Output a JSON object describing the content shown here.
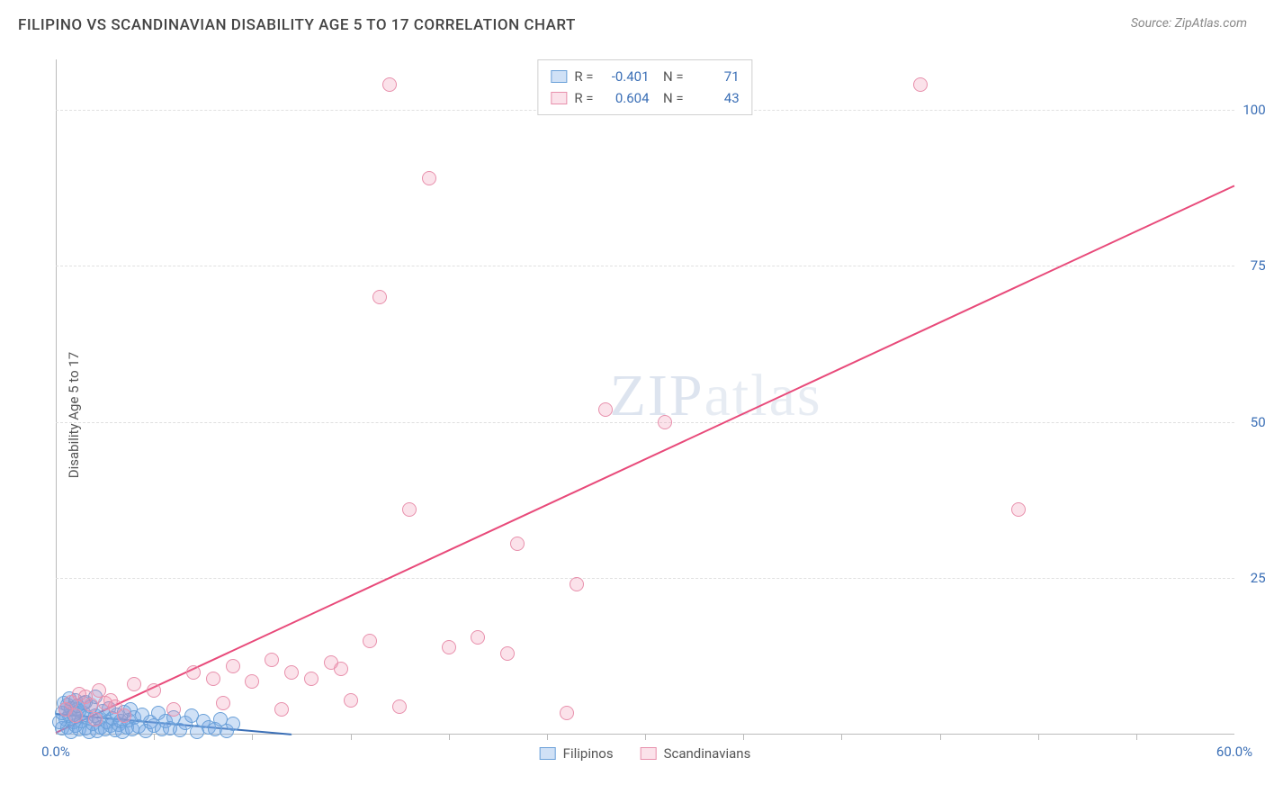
{
  "header": {
    "title": "FILIPINO VS SCANDINAVIAN DISABILITY AGE 5 TO 17 CORRELATION CHART",
    "source_prefix": "Source: ",
    "source_name": "ZipAtlas.com"
  },
  "watermark": {
    "part1": "ZIP",
    "part2": "atlas"
  },
  "chart": {
    "type": "scatter",
    "ylabel": "Disability Age 5 to 17",
    "xlim": [
      0,
      60
    ],
    "ylim": [
      0,
      108
    ],
    "xtick_major": [
      0,
      60
    ],
    "xtick_minor": [
      5,
      10,
      15,
      20,
      25,
      30,
      35,
      40,
      45,
      50,
      55
    ],
    "xtick_labels": {
      "0": "0.0%",
      "60": "60.0%"
    },
    "ytick_values": [
      25,
      50,
      75,
      100
    ],
    "ytick_labels": {
      "25": "25.0%",
      "50": "50.0%",
      "75": "75.0%",
      "100": "100.0%"
    },
    "grid_color": "#e0e0e0",
    "axis_color": "#bbbbbb",
    "background_color": "#ffffff",
    "tick_label_color": "#3b6fb6",
    "tick_label_fontsize": 15,
    "marker_radius": 8,
    "series": [
      {
        "name": "Filipinos",
        "fill_color": "rgba(120,170,230,0.35)",
        "stroke_color": "#6aa0d8",
        "trend": {
          "x1": 0,
          "y1": 3.5,
          "x2": 12,
          "y2": 0.2,
          "color": "#3b6fb6",
          "width": 2,
          "dash": false,
          "extend_dash_to_x": 12,
          "extend_dash_color": "#9ab8d6"
        },
        "R": "-0.401",
        "N": "71",
        "points": [
          [
            0.3,
            1.0
          ],
          [
            0.5,
            2.5
          ],
          [
            0.6,
            1.2
          ],
          [
            0.7,
            3.0
          ],
          [
            0.8,
            0.5
          ],
          [
            0.9,
            2.0
          ],
          [
            1.0,
            1.5
          ],
          [
            1.1,
            4.0
          ],
          [
            1.2,
            0.8
          ],
          [
            1.3,
            2.2
          ],
          [
            1.4,
            3.5
          ],
          [
            1.5,
            1.0
          ],
          [
            1.6,
            2.8
          ],
          [
            1.7,
            0.4
          ],
          [
            1.8,
            4.5
          ],
          [
            1.9,
            1.8
          ],
          [
            2.0,
            3.0
          ],
          [
            2.1,
            0.6
          ],
          [
            2.2,
            2.4
          ],
          [
            2.3,
            1.2
          ],
          [
            2.4,
            3.8
          ],
          [
            2.5,
            0.9
          ],
          [
            2.6,
            2.0
          ],
          [
            2.7,
            4.2
          ],
          [
            2.8,
            1.4
          ],
          [
            2.9,
            2.6
          ],
          [
            3.0,
            0.7
          ],
          [
            3.1,
            3.2
          ],
          [
            3.2,
            1.6
          ],
          [
            3.3,
            2.1
          ],
          [
            3.4,
            0.5
          ],
          [
            3.5,
            3.6
          ],
          [
            3.6,
            1.1
          ],
          [
            3.7,
            2.3
          ],
          [
            3.8,
            4.0
          ],
          [
            3.9,
            0.8
          ],
          [
            4.0,
            2.7
          ],
          [
            4.2,
            1.3
          ],
          [
            4.4,
            3.1
          ],
          [
            4.6,
            0.6
          ],
          [
            4.8,
            2.0
          ],
          [
            5.0,
            1.5
          ],
          [
            5.2,
            3.4
          ],
          [
            5.4,
            0.9
          ],
          [
            5.6,
            2.2
          ],
          [
            5.8,
            1.0
          ],
          [
            6.0,
            2.8
          ],
          [
            6.3,
            0.7
          ],
          [
            6.6,
            1.9
          ],
          [
            6.9,
            3.0
          ],
          [
            7.2,
            0.5
          ],
          [
            7.5,
            2.1
          ],
          [
            7.8,
            1.2
          ],
          [
            8.1,
            0.8
          ],
          [
            8.4,
            2.5
          ],
          [
            8.7,
            0.6
          ],
          [
            9.0,
            1.7
          ],
          [
            0.4,
            5.0
          ],
          [
            0.6,
            4.8
          ],
          [
            1.0,
            5.5
          ],
          [
            1.5,
            5.2
          ],
          [
            2.0,
            6.0
          ],
          [
            0.8,
            4.2
          ],
          [
            1.2,
            3.8
          ],
          [
            0.2,
            2.0
          ],
          [
            0.3,
            3.5
          ],
          [
            0.5,
            4.0
          ],
          [
            0.7,
            5.8
          ],
          [
            0.9,
            3.2
          ],
          [
            1.1,
            4.6
          ],
          [
            1.4,
            5.0
          ]
        ]
      },
      {
        "name": "Scandinavians",
        "fill_color": "rgba(240,140,170,0.25)",
        "stroke_color": "#e890ac",
        "trend": {
          "x1": 0,
          "y1": 0.5,
          "x2": 60,
          "y2": 88,
          "color": "#e84a7a",
          "width": 2,
          "dash": false
        },
        "R": "0.604",
        "N": "43",
        "points": [
          [
            0.5,
            4.0
          ],
          [
            1.0,
            3.0
          ],
          [
            1.5,
            6.0
          ],
          [
            2.0,
            2.5
          ],
          [
            2.5,
            5.0
          ],
          [
            3.0,
            4.5
          ],
          [
            3.5,
            3.0
          ],
          [
            4.0,
            8.0
          ],
          [
            5.0,
            7.0
          ],
          [
            6.0,
            4.0
          ],
          [
            7.0,
            10.0
          ],
          [
            8.0,
            9.0
          ],
          [
            8.5,
            5.0
          ],
          [
            9.0,
            11.0
          ],
          [
            10.0,
            8.5
          ],
          [
            11.0,
            12.0
          ],
          [
            11.5,
            4.0
          ],
          [
            12.0,
            10.0
          ],
          [
            13.0,
            9.0
          ],
          [
            14.0,
            11.5
          ],
          [
            14.5,
            10.5
          ],
          [
            15.0,
            5.5
          ],
          [
            16.0,
            15.0
          ],
          [
            17.5,
            4.5
          ],
          [
            18.0,
            36.0
          ],
          [
            19.0,
            89.0
          ],
          [
            20.0,
            14.0
          ],
          [
            21.5,
            15.5
          ],
          [
            23.0,
            13.0
          ],
          [
            26.0,
            3.5
          ],
          [
            16.5,
            70.0
          ],
          [
            17.0,
            104.0
          ],
          [
            28.0,
            52.0
          ],
          [
            31.0,
            50.0
          ],
          [
            26.5,
            24.0
          ],
          [
            23.5,
            30.5
          ],
          [
            44.0,
            104.0
          ],
          [
            49.0,
            36.0
          ],
          [
            0.8,
            5.2
          ],
          [
            1.2,
            6.5
          ],
          [
            1.8,
            4.8
          ],
          [
            2.2,
            7.0
          ],
          [
            2.8,
            5.5
          ]
        ]
      }
    ],
    "legend_top": {
      "r_label": "R =",
      "n_label": "N ="
    },
    "legend_bottom": {
      "items": [
        "Filipinos",
        "Scandinavians"
      ]
    }
  }
}
